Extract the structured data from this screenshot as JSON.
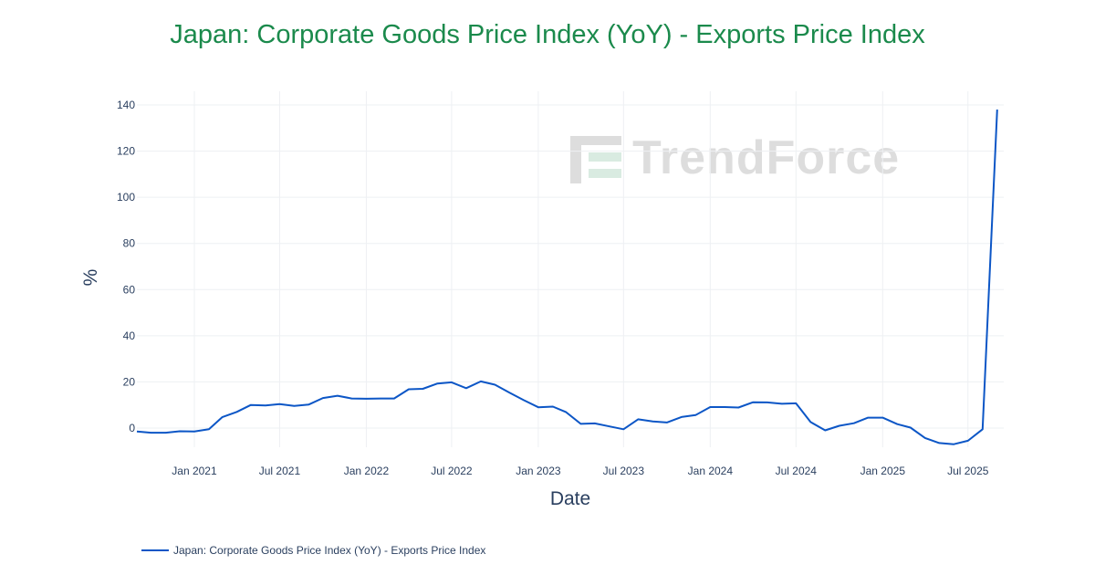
{
  "title": "Japan: Corporate Goods Price Index (YoY) - Exports Price Index",
  "watermark": "TrendForce",
  "colors": {
    "title": "#1b8a4c",
    "line": "#0c56c6",
    "axis_text": "#2a3f5f"
  },
  "legend": {
    "label": "Japan: Corporate Goods Price Index (YoY) - Exports Price Index"
  },
  "chart_data": {
    "type": "line",
    "title": "Japan: Corporate Goods Price Index (YoY) - Exports Price Index",
    "xlabel": "Date",
    "ylabel": "%",
    "ylim": [
      -8,
      145
    ],
    "xlim": [
      "2020-09-01",
      "2025-09-15"
    ],
    "yticks": [
      0,
      20,
      40,
      60,
      80,
      100,
      120,
      140
    ],
    "xticks": [
      {
        "date": "2021-01-01",
        "label": "Jan 2021"
      },
      {
        "date": "2021-07-01",
        "label": "Jul 2021"
      },
      {
        "date": "2022-01-01",
        "label": "Jan 2022"
      },
      {
        "date": "2022-07-01",
        "label": "Jul 2022"
      },
      {
        "date": "2023-01-01",
        "label": "Jan 2023"
      },
      {
        "date": "2023-07-01",
        "label": "Jul 2023"
      },
      {
        "date": "2024-01-01",
        "label": "Jan 2024"
      },
      {
        "date": "2024-07-01",
        "label": "Jul 2024"
      },
      {
        "date": "2025-01-01",
        "label": "Jan 2025"
      },
      {
        "date": "2025-07-01",
        "label": "Jul 2025"
      }
    ],
    "grid": true,
    "legend_position": "bottom-left",
    "series": [
      {
        "name": "Japan: Corporate Goods Price Index (YoY) - Exports Price Index",
        "x": [
          "2020-09",
          "2020-10",
          "2020-11",
          "2020-12",
          "2021-01",
          "2021-02",
          "2021-03",
          "2021-04",
          "2021-05",
          "2021-06",
          "2021-07",
          "2021-08",
          "2021-09",
          "2021-10",
          "2021-11",
          "2021-12",
          "2022-01",
          "2022-02",
          "2022-03",
          "2022-04",
          "2022-05",
          "2022-06",
          "2022-07",
          "2022-08",
          "2022-09",
          "2022-10",
          "2022-11",
          "2022-12",
          "2023-01",
          "2023-02",
          "2023-03",
          "2023-04",
          "2023-05",
          "2023-06",
          "2023-07",
          "2023-08",
          "2023-09",
          "2023-10",
          "2023-11",
          "2023-12",
          "2024-01",
          "2024-02",
          "2024-03",
          "2024-04",
          "2024-05",
          "2024-06",
          "2024-07",
          "2024-08",
          "2024-09",
          "2024-10",
          "2024-11",
          "2024-12",
          "2025-01",
          "2025-02",
          "2025-03",
          "2025-04",
          "2025-05",
          "2025-06",
          "2025-07",
          "2025-08",
          "2025-09"
        ],
        "y": [
          -1.5,
          -2.0,
          -2.0,
          -1.4,
          -1.5,
          -0.5,
          4.7,
          7.0,
          10.0,
          9.8,
          10.4,
          9.6,
          10.2,
          13.0,
          14.0,
          12.8,
          12.7,
          12.8,
          12.8,
          16.8,
          17.0,
          19.3,
          19.8,
          17.3,
          20.2,
          18.8,
          15.3,
          12.1,
          9.0,
          9.3,
          6.9,
          1.8,
          2.0,
          0.7,
          -0.5,
          3.8,
          2.9,
          2.4,
          4.8,
          5.6,
          9.1,
          9.1,
          8.9,
          11.2,
          11.1,
          10.5,
          10.7,
          2.6,
          -1.0,
          1.0,
          2.1,
          4.5,
          4.5,
          1.7,
          0.2,
          -4.3,
          -6.5,
          -7.0,
          -5.5,
          -0.5,
          138.0
        ]
      }
    ]
  }
}
